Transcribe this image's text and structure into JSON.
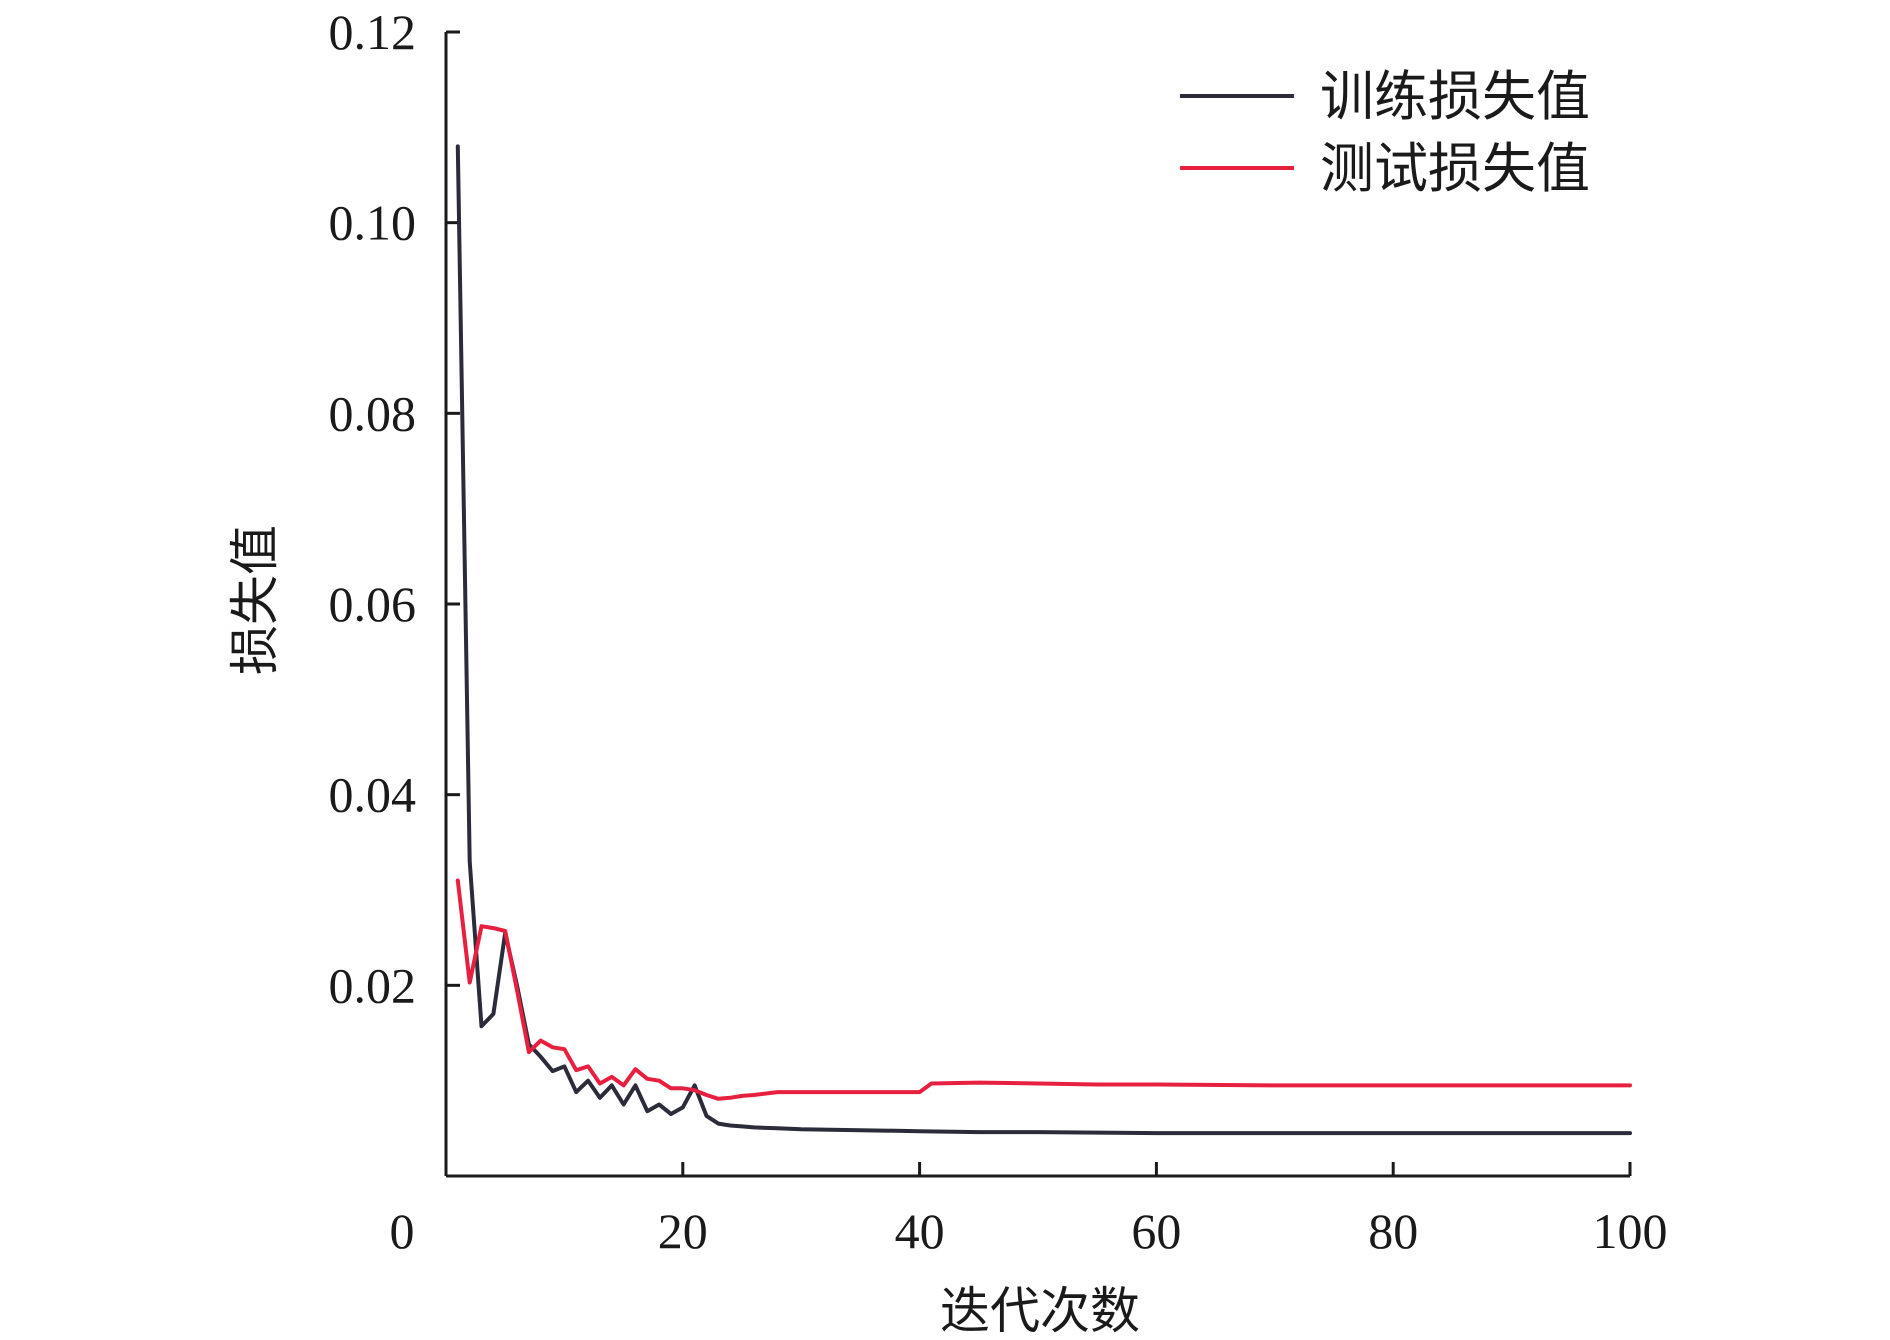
{
  "chart_data": {
    "type": "line",
    "xlabel": "迭代次数",
    "ylabel": "损失值",
    "xlim": [
      0,
      100
    ],
    "ylim": [
      0,
      0.12
    ],
    "xticks": [
      0,
      20,
      40,
      60,
      80,
      100
    ],
    "xtick_labels": [
      "0",
      "20",
      "40",
      "60",
      "80",
      "100"
    ],
    "yticks": [
      0.02,
      0.04,
      0.06,
      0.08,
      0.1,
      0.12
    ],
    "ytick_labels": [
      "0.02",
      "0.04",
      "0.06",
      "0.08",
      "0.10",
      "0.12"
    ],
    "grid": false,
    "legend_position": "top-right",
    "series": [
      {
        "name": "训练损失值",
        "color": "#2b2b3a",
        "x": [
          1,
          2,
          3,
          4,
          5,
          6,
          7,
          8,
          9,
          10,
          11,
          12,
          13,
          14,
          15,
          16,
          17,
          18,
          19,
          20,
          21,
          22,
          23,
          24,
          25,
          26,
          28,
          30,
          35,
          40,
          45,
          50,
          60,
          70,
          80,
          90,
          100
        ],
        "y": [
          0.108,
          0.033,
          0.0157,
          0.017,
          0.0255,
          0.02,
          0.0138,
          0.0125,
          0.011,
          0.0115,
          0.0088,
          0.01,
          0.0082,
          0.0095,
          0.0075,
          0.0095,
          0.0068,
          0.0075,
          0.0065,
          0.0072,
          0.0095,
          0.0063,
          0.0055,
          0.0053,
          0.0052,
          0.0051,
          0.005,
          0.0049,
          0.0048,
          0.0047,
          0.0046,
          0.0046,
          0.0045,
          0.0045,
          0.0045,
          0.0045,
          0.0045
        ]
      },
      {
        "name": "测试损失值",
        "color": "#e8203f",
        "x": [
          1,
          2,
          3,
          4,
          5,
          6,
          7,
          8,
          9,
          10,
          11,
          12,
          13,
          14,
          15,
          16,
          17,
          18,
          19,
          20,
          21,
          22,
          23,
          24,
          25,
          26,
          28,
          30,
          35,
          40,
          41,
          45,
          50,
          55,
          60,
          70,
          80,
          90,
          100
        ],
        "y": [
          0.031,
          0.0203,
          0.0262,
          0.026,
          0.0257,
          0.0195,
          0.013,
          0.0142,
          0.0135,
          0.0133,
          0.0111,
          0.0115,
          0.0097,
          0.0104,
          0.0095,
          0.0112,
          0.0102,
          0.01,
          0.0092,
          0.0092,
          0.009,
          0.0085,
          0.0081,
          0.0082,
          0.0084,
          0.0085,
          0.0088,
          0.0088,
          0.0088,
          0.0088,
          0.0097,
          0.0098,
          0.0097,
          0.0096,
          0.0096,
          0.0095,
          0.0095,
          0.0095,
          0.0095
        ]
      }
    ]
  }
}
